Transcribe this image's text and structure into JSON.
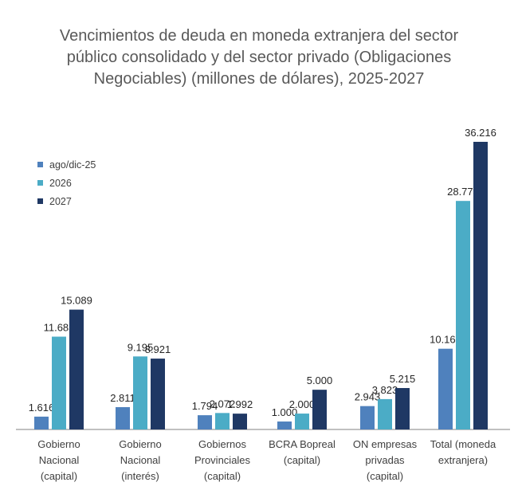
{
  "chart_data": {
    "type": "bar",
    "title_lines": [
      "Vencimientos de deuda en moneda extranjera del sector",
      "público consolidado y del sector privado (Obligaciones",
      "Negociables) (millones de dólares), 2025-2027"
    ],
    "categories": [
      "Gobierno\nNacional\n(capital)",
      "Gobierno\nNacional\n(interés)",
      "Gobiernos\nProvinciales\n(capital)",
      "BCRA Bopreal\n(capital)",
      "ON empresas\nprivadas\n(capital)",
      "Total (moneda\nextranjera)"
    ],
    "series": [
      {
        "name": "ago/dic-25",
        "color": "#4F81BD",
        "values": [
          1616,
          2811,
          1794,
          1000,
          2943,
          10164
        ],
        "labels": [
          "1.616",
          "2.811",
          "1.794",
          "1.000",
          "2.943",
          "10.164"
        ]
      },
      {
        "name": "2026",
        "color": "#4BACC6",
        "values": [
          11685,
          9195,
          2072,
          2000,
          3823,
          28774
        ],
        "labels": [
          "11.685",
          "9.195",
          "2.072",
          "2.000",
          "3.823",
          "28.774"
        ]
      },
      {
        "name": "2027",
        "color": "#1F3864",
        "values": [
          15089,
          8921,
          1992,
          5000,
          5215,
          36216
        ],
        "labels": [
          "15.089",
          "8.921",
          "1.992",
          "5.000",
          "5.215",
          "36.216"
        ]
      }
    ],
    "ylim": [
      0,
      36216
    ],
    "grid": false,
    "legend_position": "top-left"
  }
}
